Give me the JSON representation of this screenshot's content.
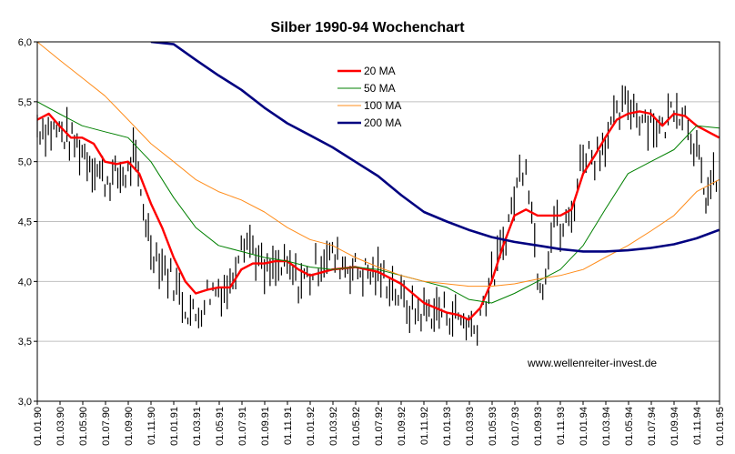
{
  "chart_data": {
    "type": "line",
    "title": "Silber 1990-94 Wochenchart",
    "xlabel": "",
    "ylabel": "",
    "ylim": [
      3.0,
      6.0
    ],
    "ytick_labels": [
      "3,0",
      "3,5",
      "4,0",
      "4,5",
      "5,0",
      "5,5",
      "6,0"
    ],
    "xlim": [
      "1990-01-01",
      "1995-01-01"
    ],
    "x_tick_labels": [
      "01.01.90",
      "01.03.90",
      "01.05.90",
      "01.07.90",
      "01.09.90",
      "01.11.90",
      "01.01.91",
      "01.03.91",
      "01.05.91",
      "01.07.91",
      "01.09.91",
      "01.11.91",
      "01.01.92",
      "01.03.92",
      "01.05.92",
      "01.07.92",
      "01.09.92",
      "01.11.92",
      "01.01.93",
      "01.03.93",
      "01.05.93",
      "01.07.93",
      "01.09.93",
      "01.11.93",
      "01.01.94",
      "01.03.94",
      "01.05.94",
      "01.07.94",
      "01.09.94",
      "01.11.94",
      "01.01.95"
    ],
    "grid": "horizontal",
    "legend_position": "top-center",
    "watermark": "www.wellenreiter-invest.de",
    "price_bars": {
      "name": "",
      "color": "#000000",
      "dates": [
        "1990-01-01",
        "1990-03-01",
        "1990-05-01",
        "1990-07-01",
        "1990-09-01",
        "1990-09-15",
        "1990-11-01",
        "1990-12-01",
        "1991-01-01",
        "1991-02-01",
        "1991-03-01",
        "1991-04-01",
        "1991-05-01",
        "1991-06-01",
        "1991-07-01",
        "1991-08-01",
        "1991-09-01",
        "1991-10-01",
        "1991-11-01",
        "1991-12-01",
        "1992-01-01",
        "1992-02-15",
        "1992-03-01",
        "1992-05-01",
        "1992-07-01",
        "1992-08-01",
        "1992-09-01",
        "1992-10-01",
        "1992-11-01",
        "1993-01-01",
        "1993-02-01",
        "1993-03-01",
        "1993-03-15",
        "1993-04-01",
        "1993-05-01",
        "1993-06-01",
        "1993-07-15",
        "1993-08-01",
        "1993-09-01",
        "1993-09-15",
        "1993-10-15",
        "1993-11-01",
        "1993-12-01",
        "1994-01-01",
        "1994-02-01",
        "1994-03-01",
        "1994-04-01",
        "1994-05-01",
        "1994-06-01",
        "1994-07-01",
        "1994-08-01",
        "1994-09-01",
        "1994-10-01",
        "1994-11-01",
        "1994-11-20",
        "1994-12-01",
        "1994-12-31"
      ],
      "values": [
        5.3,
        5.25,
        5.1,
        4.85,
        4.9,
        5.05,
        4.3,
        4.15,
        4.0,
        3.8,
        3.7,
        3.9,
        3.95,
        3.95,
        4.4,
        4.3,
        4.05,
        4.1,
        4.1,
        4.0,
        4.05,
        4.25,
        4.2,
        4.1,
        4.05,
        4.0,
        3.85,
        3.75,
        3.75,
        3.75,
        3.7,
        3.65,
        3.6,
        3.75,
        4.0,
        4.3,
        4.9,
        5.05,
        4.1,
        4.0,
        4.55,
        4.4,
        4.55,
        5.1,
        5.05,
        5.2,
        5.35,
        5.5,
        5.4,
        5.35,
        5.25,
        5.5,
        5.4,
        5.1,
        4.7,
        4.75,
        4.9
      ]
    },
    "series": [
      {
        "name": "20 MA",
        "color": "#ff0000",
        "dates": [
          "1990-01-01",
          "1990-02-01",
          "1990-03-01",
          "1990-04-01",
          "1990-05-01",
          "1990-06-01",
          "1990-07-01",
          "1990-08-01",
          "1990-09-01",
          "1990-10-01",
          "1990-11-01",
          "1990-12-01",
          "1991-01-01",
          "1991-02-01",
          "1991-03-01",
          "1991-04-01",
          "1991-05-01",
          "1991-06-01",
          "1991-07-01",
          "1991-08-01",
          "1991-09-01",
          "1991-10-01",
          "1991-11-01",
          "1991-12-01",
          "1992-01-01",
          "1992-03-01",
          "1992-05-01",
          "1992-07-01",
          "1992-09-01",
          "1992-11-01",
          "1993-01-01",
          "1993-02-01",
          "1993-03-01",
          "1993-04-01",
          "1993-05-01",
          "1993-06-01",
          "1993-07-01",
          "1993-08-01",
          "1993-09-01",
          "1993-10-01",
          "1993-11-01",
          "1993-12-01",
          "1994-01-01",
          "1994-02-01",
          "1994-03-01",
          "1994-04-01",
          "1994-05-01",
          "1994-06-01",
          "1994-07-01",
          "1994-08-01",
          "1994-09-01",
          "1994-10-01",
          "1994-11-01",
          "1994-12-01",
          "1994-12-31"
        ],
        "values": [
          5.35,
          5.4,
          5.3,
          5.2,
          5.2,
          5.15,
          5.0,
          4.98,
          5.0,
          4.9,
          4.65,
          4.45,
          4.2,
          4.0,
          3.9,
          3.93,
          3.95,
          3.95,
          4.1,
          4.15,
          4.15,
          4.17,
          4.17,
          4.1,
          4.05,
          4.1,
          4.12,
          4.08,
          3.98,
          3.82,
          3.74,
          3.72,
          3.68,
          3.78,
          4.0,
          4.3,
          4.55,
          4.6,
          4.55,
          4.55,
          4.55,
          4.6,
          4.9,
          5.05,
          5.2,
          5.35,
          5.4,
          5.42,
          5.4,
          5.3,
          5.4,
          5.38,
          5.3,
          5.25,
          5.2
        ]
      },
      {
        "name": "50 MA",
        "color": "#008000",
        "dates": [
          "1990-01-01",
          "1990-03-01",
          "1990-05-01",
          "1990-07-01",
          "1990-09-01",
          "1990-11-01",
          "1991-01-01",
          "1991-03-01",
          "1991-05-01",
          "1991-07-01",
          "1991-09-01",
          "1991-11-01",
          "1992-01-01",
          "1992-03-01",
          "1992-05-01",
          "1992-07-01",
          "1992-09-01",
          "1992-11-01",
          "1993-01-01",
          "1993-03-01",
          "1993-05-01",
          "1993-07-01",
          "1993-09-01",
          "1993-11-01",
          "1994-01-01",
          "1994-03-01",
          "1994-05-01",
          "1994-07-01",
          "1994-09-01",
          "1994-11-01",
          "1994-12-31"
        ],
        "values": [
          5.5,
          5.4,
          5.3,
          5.25,
          5.2,
          5.0,
          4.7,
          4.45,
          4.3,
          4.25,
          4.2,
          4.17,
          4.12,
          4.1,
          4.12,
          4.1,
          4.05,
          4.0,
          3.95,
          3.85,
          3.82,
          3.9,
          4.0,
          4.1,
          4.3,
          4.6,
          4.9,
          5.0,
          5.1,
          5.3,
          5.28
        ]
      },
      {
        "name": "100 MA",
        "color": "#ff8c1a",
        "dates": [
          "1990-01-01",
          "1990-03-01",
          "1990-05-01",
          "1990-07-01",
          "1990-09-01",
          "1990-11-01",
          "1991-01-01",
          "1991-03-01",
          "1991-05-01",
          "1991-07-01",
          "1991-09-01",
          "1991-11-01",
          "1992-01-01",
          "1992-03-01",
          "1992-05-01",
          "1992-07-01",
          "1992-09-01",
          "1992-11-01",
          "1993-01-01",
          "1993-03-01",
          "1993-05-01",
          "1993-07-01",
          "1993-09-01",
          "1993-11-01",
          "1994-01-01",
          "1994-03-01",
          "1994-05-01",
          "1994-07-01",
          "1994-09-01",
          "1994-11-01",
          "1994-12-31"
        ],
        "values": [
          6.0,
          5.85,
          5.7,
          5.55,
          5.35,
          5.15,
          5.0,
          4.85,
          4.75,
          4.68,
          4.58,
          4.45,
          4.35,
          4.3,
          4.2,
          4.12,
          4.05,
          4.0,
          3.98,
          3.96,
          3.96,
          3.98,
          4.02,
          4.05,
          4.1,
          4.2,
          4.3,
          4.42,
          4.55,
          4.75,
          4.85
        ]
      },
      {
        "name": "200 MA",
        "color": "#000080",
        "dates": [
          "1990-11-01",
          "1991-01-01",
          "1991-03-01",
          "1991-05-01",
          "1991-07-01",
          "1991-09-01",
          "1991-11-01",
          "1992-01-01",
          "1992-03-01",
          "1992-05-01",
          "1992-07-01",
          "1992-09-01",
          "1992-11-01",
          "1993-01-01",
          "1993-03-01",
          "1993-05-01",
          "1993-07-01",
          "1993-09-01",
          "1993-11-01",
          "1994-01-01",
          "1994-03-01",
          "1994-05-01",
          "1994-07-01",
          "1994-09-01",
          "1994-11-01",
          "1994-12-31"
        ],
        "values": [
          6.0,
          5.98,
          5.85,
          5.72,
          5.6,
          5.45,
          5.32,
          5.22,
          5.12,
          5.0,
          4.88,
          4.72,
          4.58,
          4.5,
          4.43,
          4.37,
          4.33,
          4.3,
          4.27,
          4.25,
          4.25,
          4.26,
          4.28,
          4.31,
          4.36,
          4.43
        ]
      }
    ]
  }
}
